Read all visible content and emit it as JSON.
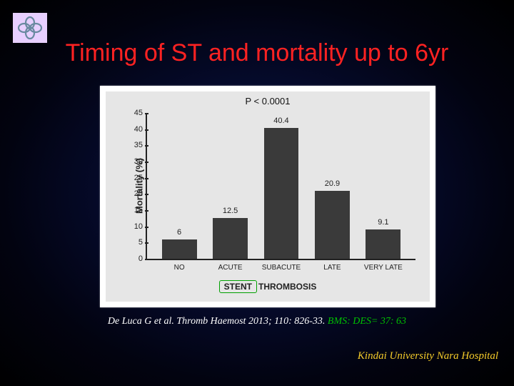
{
  "slide": {
    "title": "Timing of ST and mortality up to 6yr",
    "citation_plain": "De Luca G et al.  Thromb Haemost 2013; 110: 826-33. ",
    "citation_highlight": "BMS: DES= 37: 63",
    "affiliation": "Kindai University Nara Hospital"
  },
  "chart": {
    "type": "bar",
    "pvalue": "P < 0.0001",
    "ylabel": "Mortality (%)",
    "ylim": [
      0,
      45
    ],
    "ytick_step": 5,
    "yticks": [
      0,
      5,
      10,
      15,
      20,
      25,
      30,
      35,
      40,
      45
    ],
    "categories": [
      "NO",
      "ACUTE",
      "SUBACUTE",
      "LATE",
      "VERY LATE"
    ],
    "values": [
      6,
      12.5,
      40.4,
      20.9,
      9.1
    ],
    "bar_color": "#3a3a3a",
    "background_color": "#e6e6e6",
    "panel_background": "#ffffff",
    "axis_color": "#222222",
    "bar_width_pct": 13,
    "bar_slot_pct": 19,
    "xlabel_boxed": "STENT",
    "xlabel_rest": "THROMBOSIS",
    "title_fontsize": 34,
    "title_color": "#ff2222",
    "label_fontsize": 12,
    "tick_fontsize": 11
  },
  "logo": {
    "bg": "#e8d0ff",
    "petal_color": "#6a8aa0"
  }
}
